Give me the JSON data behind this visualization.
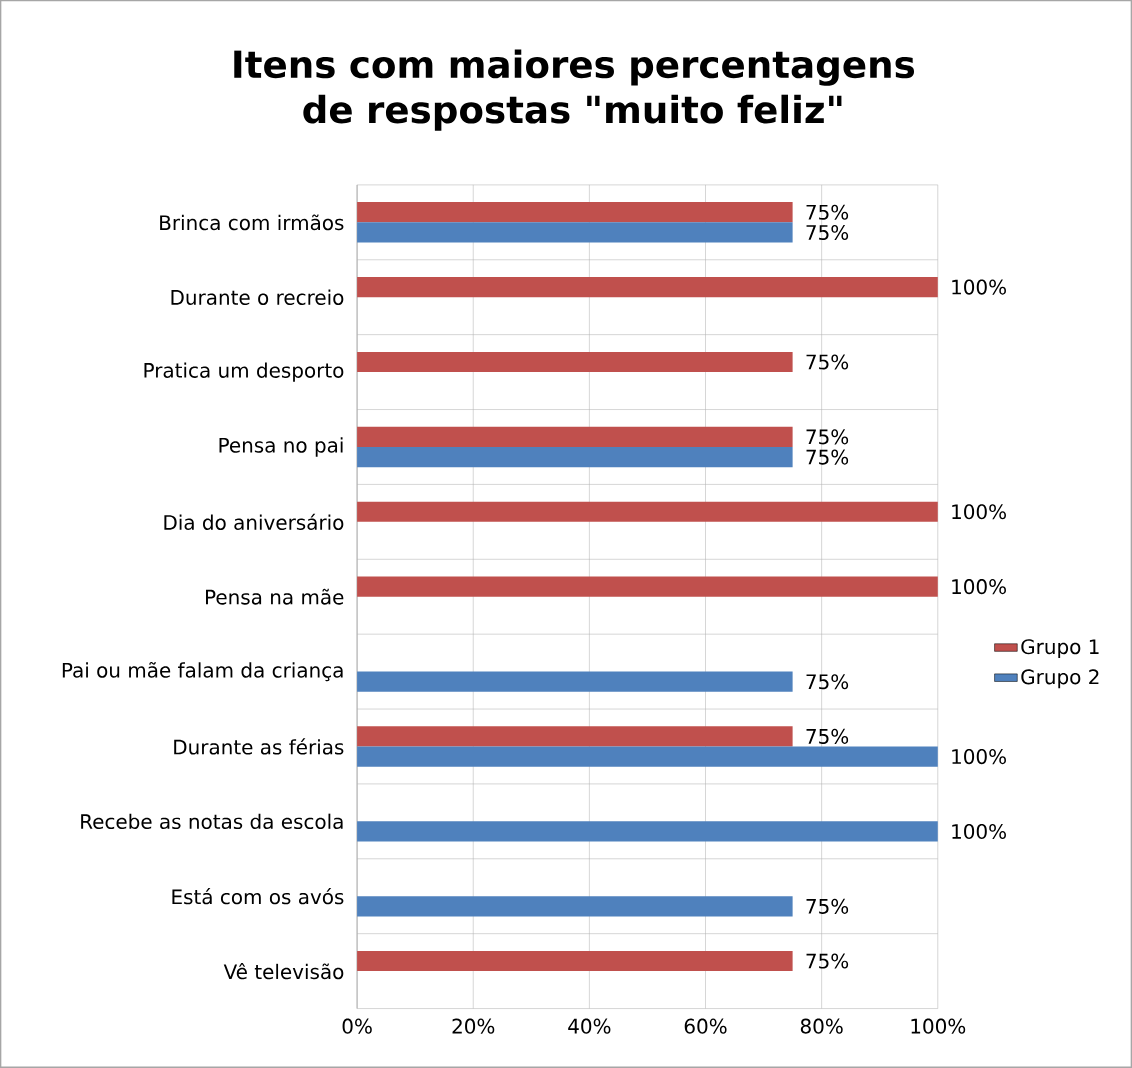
{
  "chart_data": {
    "type": "bar",
    "orientation": "horizontal",
    "title": "Itens com maiores percentagens de respostas \"muito feliz\"",
    "categories": [
      "Brinca com irmãos",
      "Durante o recreio",
      "Pratica um desporto",
      "Pensa no pai",
      "Dia do aniversário",
      "Pensa na mãe",
      "Pai ou mãe falam da criança",
      "Durante as férias",
      "Recebe as notas da escola",
      "Está com os avós",
      "Vê televisão"
    ],
    "series": [
      {
        "name": "Grupo 1",
        "color": "#c0504d",
        "values": [
          75,
          100,
          75,
          75,
          100,
          100,
          null,
          75,
          null,
          null,
          75
        ],
        "value_labels": [
          "75%",
          "100%",
          "75%",
          "75%",
          "100%",
          "100%",
          null,
          "75%",
          null,
          null,
          "75%"
        ]
      },
      {
        "name": "Grupo 2",
        "color": "#4f81bd",
        "values": [
          75,
          null,
          null,
          75,
          null,
          null,
          75,
          100,
          100,
          75,
          null
        ],
        "value_labels": [
          "75%",
          null,
          null,
          "75%",
          null,
          null,
          "75%",
          "100%",
          "100%",
          "75%",
          null
        ]
      }
    ],
    "xlim": [
      0,
      100
    ],
    "xticks": [
      {
        "value": 0,
        "label": "0%"
      },
      {
        "value": 20,
        "label": "20%"
      },
      {
        "value": 40,
        "label": "40%"
      },
      {
        "value": 60,
        "label": "60%"
      },
      {
        "value": 80,
        "label": "80%"
      },
      {
        "value": 100,
        "label": "100%"
      }
    ],
    "grid": true,
    "legend": "right"
  }
}
